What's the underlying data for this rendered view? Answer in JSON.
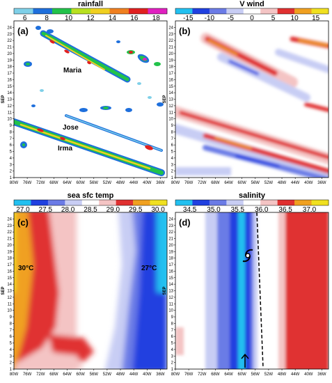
{
  "chart_data": [
    {
      "panel": "(a)",
      "type": "heatmap",
      "colorbar_title": "rainfall",
      "colorbar_ticks": [
        "6",
        "8",
        "10",
        "12",
        "14",
        "16",
        "18"
      ],
      "colorbar_range": [
        5,
        19
      ],
      "colors": [
        "#7fd0e8",
        "#1e6fdc",
        "#22c24a",
        "#b8e020",
        "#f0d020",
        "#f08020",
        "#e02020",
        "#e020c0"
      ],
      "x_ticks": [
        "80W",
        "76W",
        "72W",
        "68W",
        "64W",
        "60W",
        "56W",
        "52W",
        "48W",
        "44W",
        "40W",
        "36W"
      ],
      "y_label": "SEP",
      "y_ticks": [
        "1",
        "2",
        "3",
        "4",
        "5",
        "6",
        "7",
        "8",
        "9",
        "10",
        "11",
        "12",
        "13",
        "14",
        "15",
        "16",
        "17",
        "18",
        "19",
        "20",
        "21",
        "22",
        "23",
        "24"
      ],
      "xlim": [
        -80,
        -34
      ],
      "ylim": [
        1,
        25
      ],
      "annotations": [
        "Maria",
        "Jose",
        "Irma"
      ],
      "tracks": [
        {
          "name": "Maria",
          "points": [
            [
              -71,
              22
            ],
            [
              -64,
              17.5
            ],
            [
              -56,
              15.6
            ]
          ]
        },
        {
          "name": "Jose",
          "points": [
            [
              -66,
              12
            ],
            [
              -48,
              7.5
            ],
            [
              -38,
              5.2
            ]
          ]
        },
        {
          "name": "Irma",
          "points": [
            [
              -80,
              9
            ],
            [
              -64,
              5.5
            ],
            [
              -48,
              2.5
            ],
            [
              -37,
              1.2
            ]
          ]
        }
      ]
    },
    {
      "panel": "(b)",
      "type": "heatmap",
      "colorbar_title": "V wind",
      "colorbar_ticks": [
        "-15",
        "-10",
        "-5",
        "0",
        "5",
        "10",
        "15"
      ],
      "colorbar_range": [
        -18,
        18
      ],
      "colors": [
        "#22c0f0",
        "#2040e0",
        "#6b7be6",
        "#c8cdf4",
        "#ffffff",
        "#f4c4c4",
        "#e03030",
        "#f0a020",
        "#f0e020"
      ],
      "x_ticks": [
        "80W",
        "76W",
        "72W",
        "68W",
        "64W",
        "60W",
        "56W",
        "52W",
        "48W",
        "44W",
        "40W",
        "36W"
      ],
      "y_label": "SEP",
      "y_ticks": [
        "1",
        "2",
        "3",
        "4",
        "5",
        "6",
        "7",
        "8",
        "9",
        "10",
        "11",
        "12",
        "13",
        "14",
        "15",
        "16",
        "17",
        "18",
        "19",
        "20",
        "21",
        "22",
        "23",
        "24"
      ],
      "xlim": [
        -80,
        -34
      ],
      "ylim": [
        1,
        25
      ]
    },
    {
      "panel": "(c)",
      "type": "heatmap",
      "colorbar_title": "sea sfc temp",
      "colorbar_ticks": [
        "27.0",
        "27.5",
        "28.0",
        "28.5",
        "29.0",
        "29.5",
        "30.0"
      ],
      "colorbar_range": [
        26.8,
        30.2
      ],
      "colors": [
        "#22c0f0",
        "#2040e0",
        "#6b7be6",
        "#c8cdf4",
        "#ffffff",
        "#f4c4c4",
        "#e03030",
        "#f0a020",
        "#f0e020"
      ],
      "x_ticks": [
        "80W",
        "76W",
        "72W",
        "68W",
        "64W",
        "60W",
        "56W",
        "52W",
        "48W",
        "44W",
        "40W",
        "36W"
      ],
      "y_label": "SEP",
      "y_ticks": [
        "1",
        "2",
        "3",
        "4",
        "5",
        "6",
        "7",
        "8",
        "9",
        "10",
        "11",
        "12",
        "13",
        "14",
        "15",
        "16",
        "17",
        "18",
        "19",
        "20",
        "21",
        "22",
        "23",
        "24"
      ],
      "xlim": [
        -80,
        -34
      ],
      "ylim": [
        1,
        25
      ],
      "annotations": [
        "30°C",
        "27°C"
      ]
    },
    {
      "panel": "(d)",
      "type": "heatmap",
      "colorbar_title": "salinity",
      "colorbar_ticks": [
        "34.5",
        "35.0",
        "35.5",
        "36.0",
        "36.5",
        "37.0"
      ],
      "colorbar_range": [
        34.2,
        37.4
      ],
      "colors": [
        "#22c0f0",
        "#2040e0",
        "#6b7be6",
        "#c8cdf4",
        "#ffffff",
        "#f4c4c4",
        "#e03030",
        "#f0a020",
        "#f0e020"
      ],
      "x_ticks": [
        "80W",
        "76W",
        "72W",
        "68W",
        "64W",
        "60W",
        "56W",
        "52W",
        "48W",
        "44W",
        "40W",
        "36W"
      ],
      "y_label": "SEP",
      "y_ticks": [
        "1",
        "2",
        "3",
        "4",
        "5",
        "6",
        "7",
        "8",
        "9",
        "10",
        "11",
        "12",
        "13",
        "14",
        "15",
        "16",
        "17",
        "18",
        "19",
        "20",
        "21",
        "22",
        "23",
        "24"
      ],
      "xlim": [
        -80,
        -34
      ],
      "ylim": [
        1,
        25
      ]
    }
  ]
}
